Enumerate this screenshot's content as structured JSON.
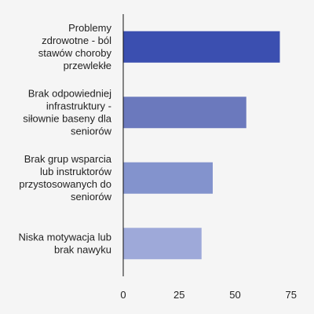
{
  "chart_data": {
    "type": "bar",
    "orientation": "horizontal",
    "categories": [
      "Problemy zdrowotne - ból stawów choroby przewlekłe",
      "Brak odpowiedniej infrastruktury - siłownie baseny dla seniorów",
      "Brak grup wsparcia lub instruktorów przystosowanych do seniorów",
      "Niska motywacja lub brak nawyku"
    ],
    "category_lines": [
      [
        "Problemy",
        "zdrowotne - ból",
        "stawów choroby",
        "przewlekłe"
      ],
      [
        "Brak odpowiedniej",
        "infrastruktury -",
        "siłownie baseny dla",
        "seniorów"
      ],
      [
        "Brak grup wsparcia",
        "lub instruktorów",
        "przystosowanych do",
        "seniorów"
      ],
      [
        "Niska motywacja lub",
        "brak nawyku"
      ]
    ],
    "values": [
      70,
      55,
      40,
      35
    ],
    "colors": [
      "#3b4fb0",
      "#6b79bd",
      "#8393cd",
      "#9ea9d9"
    ],
    "title": "",
    "xlabel": "",
    "ylabel": "",
    "xlim": [
      0,
      80
    ],
    "xticks": [
      0,
      25,
      50,
      75
    ],
    "grid": false,
    "legend": "none"
  }
}
